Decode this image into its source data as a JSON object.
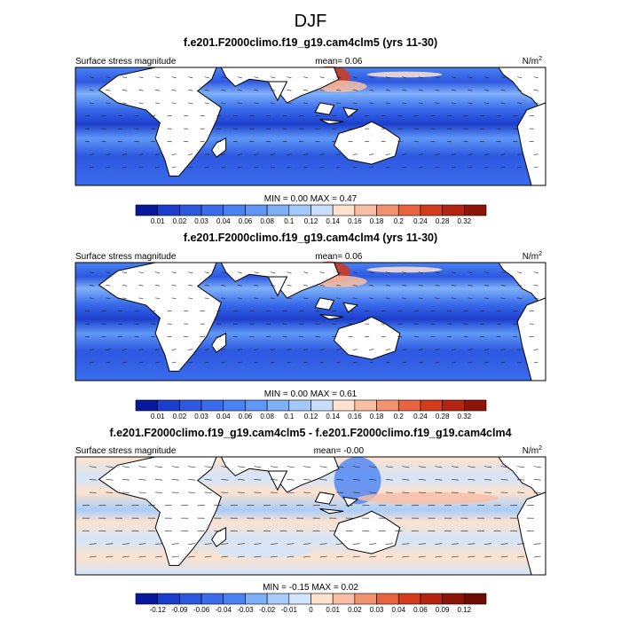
{
  "main_title": "DJF",
  "chart_data": [
    {
      "type": "heatmap",
      "title": "f.e201.F2000climo.f19_g19.cam4clm5 (yrs 11-30)",
      "left_label": "Surface stress magnitude",
      "mean_text": "mean=   0.06",
      "units_base": "N/m",
      "units_exp": "2",
      "minmax_text": "MIN =   0.00 MAX =   0.47",
      "min": 0.0,
      "max": 0.47,
      "mean": 0.06,
      "levels": [
        "0.01",
        "0.02",
        "0.03",
        "0.04",
        "0.06",
        "0.08",
        "0.1",
        "0.12",
        "0.14",
        "0.16",
        "0.18",
        "0.2",
        "0.24",
        "0.28",
        "0.32"
      ],
      "colors": [
        "#08199c",
        "#1c3ecc",
        "#2d58e0",
        "#3a6cec",
        "#4b82f2",
        "#5e97f6",
        "#7eb0f8",
        "#a3c8fa",
        "#c8defb",
        "#ffe3d0",
        "#f9bea3",
        "#f3926e",
        "#e8633f",
        "#d23b1c",
        "#b42410",
        "#8c1508"
      ]
    },
    {
      "type": "heatmap",
      "title": "f.e201.F2000climo.f19_g19.cam4clm4 (yrs 11-30)",
      "left_label": "Surface stress magnitude",
      "mean_text": "mean=   0.06",
      "units_base": "N/m",
      "units_exp": "2",
      "minmax_text": "MIN =   0.00 MAX =   0.61",
      "min": 0.0,
      "max": 0.61,
      "mean": 0.06,
      "levels": [
        "0.01",
        "0.02",
        "0.03",
        "0.04",
        "0.06",
        "0.08",
        "0.1",
        "0.12",
        "0.14",
        "0.16",
        "0.18",
        "0.2",
        "0.24",
        "0.28",
        "0.32"
      ],
      "colors": [
        "#08199c",
        "#1c3ecc",
        "#2d58e0",
        "#3a6cec",
        "#4b82f2",
        "#5e97f6",
        "#7eb0f8",
        "#a3c8fa",
        "#c8defb",
        "#ffe3d0",
        "#f9bea3",
        "#f3926e",
        "#e8633f",
        "#d23b1c",
        "#b42410",
        "#8c1508"
      ]
    },
    {
      "type": "heatmap",
      "title": "f.e201.F2000climo.f19_g19.cam4clm5 - f.e201.F2000climo.f19_g19.cam4clm4",
      "left_label": "Surface stress magnitude",
      "mean_text": "mean=  -0.00",
      "units_base": "N/m",
      "units_exp": "2",
      "minmax_text": "MIN =  -0.15 MAX =   0.02",
      "min": -0.15,
      "max": 0.02,
      "mean": -0.0,
      "levels": [
        "-0.12",
        "-0.09",
        "-0.06",
        "-0.04",
        "-0.03",
        "-0.02",
        "-0.01",
        "0",
        "0.01",
        "0.02",
        "0.03",
        "0.04",
        "0.06",
        "0.09",
        "0.12"
      ],
      "colors": [
        "#08199c",
        "#1c3ecc",
        "#2d58e0",
        "#3a6cec",
        "#4b82f2",
        "#7eb0f8",
        "#a9cdfa",
        "#d3e5fb",
        "#fde2cd",
        "#f9bea3",
        "#f3926e",
        "#e8633f",
        "#d23b1c",
        "#b42410",
        "#8c1508",
        "#6e0c04"
      ]
    }
  ]
}
